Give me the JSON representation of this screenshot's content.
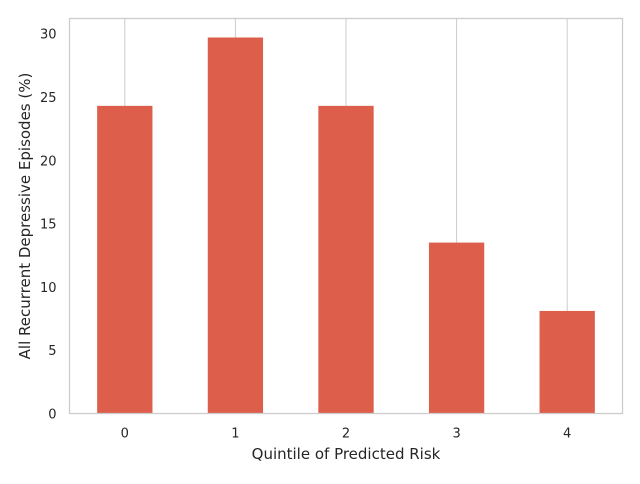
{
  "chart_data": {
    "type": "bar",
    "categories": [
      "0",
      "1",
      "2",
      "3",
      "4"
    ],
    "values": [
      24.3,
      29.7,
      24.3,
      13.5,
      8.1
    ],
    "xlabel": "Quintile of Predicted Risk",
    "ylabel": "All Recurrent Depressive Episodes (%)",
    "ylim": [
      0,
      31.2
    ],
    "yticks": [
      0,
      5,
      10,
      15,
      20,
      25,
      30
    ],
    "grid": "vertical",
    "bar_color": "#dd5f4b",
    "grid_color": "#cccccc",
    "frame_color": "#cccccc"
  }
}
